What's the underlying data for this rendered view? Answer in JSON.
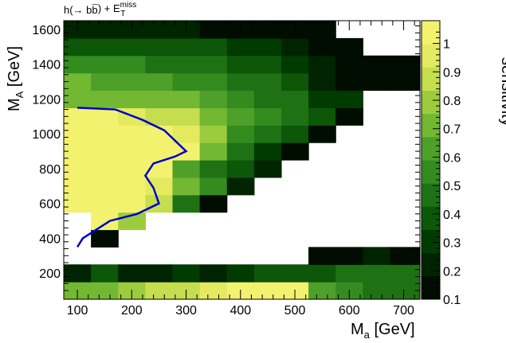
{
  "chart_data": {
    "type": "heatmap",
    "title_parts": {
      "main": "h(→ bb",
      "overline": "¯",
      "plus": ") + E",
      "sup": "miss",
      "sub": "T"
    },
    "xlabel": {
      "main": "M",
      "sub": "a",
      "rest": " [GeV]"
    },
    "ylabel": {
      "main": "M",
      "sub": "A",
      "rest": " [GeV]"
    },
    "zlabel": "sensitivity",
    "xlim": [
      75,
      730
    ],
    "ylim": [
      50,
      1650
    ],
    "zlim": [
      0.1,
      1.08
    ],
    "x_ticks": [
      100,
      200,
      300,
      400,
      500,
      600,
      700
    ],
    "y_ticks": [
      200,
      400,
      600,
      800,
      1000,
      1200,
      1400,
      1600
    ],
    "z_ticks": [
      0.1,
      0.2,
      0.3,
      0.4,
      0.5,
      0.6,
      0.7,
      0.8,
      0.9,
      1
    ],
    "x_edges": [
      75,
      125,
      175,
      225,
      275,
      325,
      375,
      425,
      475,
      525,
      575,
      625,
      675,
      730
    ],
    "y_edges": [
      50,
      150,
      250,
      350,
      450,
      550,
      650,
      750,
      850,
      950,
      1050,
      1150,
      1250,
      1350,
      1450,
      1550,
      1650
    ],
    "cells": [
      [
        0.7,
        0.75,
        0.8,
        0.85,
        0.9,
        0.95,
        1.0,
        1.0,
        1.05,
        0.6,
        0.55,
        0.5,
        0.45
      ],
      [
        0.25,
        0.35,
        0.2,
        0.25,
        0.3,
        0.25,
        0.3,
        0.35,
        0.35,
        0.4,
        0.45,
        0.45,
        0.45
      ],
      [
        null,
        null,
        null,
        null,
        null,
        null,
        null,
        null,
        null,
        0.1,
        0.1,
        0.2,
        0.15
      ],
      [
        null,
        0.15,
        null,
        null,
        null,
        null,
        null,
        null,
        null,
        null,
        null,
        null,
        null
      ],
      [
        null,
        1.0,
        0.8,
        null,
        null,
        null,
        null,
        null,
        null,
        null,
        null,
        null,
        null
      ],
      [
        1.0,
        1.0,
        1.0,
        0.9,
        0.5,
        0.1,
        null,
        null,
        null,
        null,
        null,
        null,
        null
      ],
      [
        1.0,
        1.0,
        1.0,
        0.95,
        0.7,
        0.55,
        0.25,
        null,
        null,
        null,
        null,
        null,
        null
      ],
      [
        1.0,
        1.0,
        1.0,
        1.0,
        0.6,
        0.5,
        0.4,
        0.2,
        null,
        null,
        null,
        null,
        null
      ],
      [
        1.0,
        1.0,
        1.0,
        1.0,
        1.0,
        0.7,
        0.45,
        0.3,
        0.1,
        null,
        null,
        null,
        null
      ],
      [
        1.0,
        1.0,
        1.0,
        1.0,
        0.95,
        0.8,
        0.55,
        0.45,
        0.4,
        0.1,
        null,
        null,
        null
      ],
      [
        1.0,
        1.0,
        0.95,
        0.9,
        0.85,
        0.7,
        0.6,
        0.55,
        0.45,
        0.35,
        0.1,
        null,
        null
      ],
      [
        0.75,
        0.75,
        0.75,
        0.7,
        0.7,
        0.6,
        0.55,
        0.5,
        0.45,
        0.3,
        0.3,
        null,
        null
      ],
      [
        0.7,
        0.65,
        0.6,
        0.6,
        0.55,
        0.55,
        0.45,
        0.45,
        0.35,
        0.2,
        0.15,
        0.1,
        0.05
      ],
      [
        0.55,
        0.55,
        0.55,
        0.5,
        0.5,
        0.45,
        0.4,
        0.35,
        0.3,
        0.25,
        0.1,
        0.05,
        0.05
      ],
      [
        0.35,
        0.4,
        0.35,
        0.35,
        0.35,
        0.35,
        0.3,
        0.3,
        0.25,
        0.15,
        0.05,
        null,
        null
      ],
      [
        0.2,
        0.25,
        0.2,
        0.25,
        0.2,
        0.1,
        0.05,
        0.05,
        0.05,
        0.05,
        null,
        null,
        null
      ]
    ],
    "contour": [
      [
        100,
        1150
      ],
      [
        170,
        1140
      ],
      [
        220,
        1080
      ],
      [
        260,
        1020
      ],
      [
        300,
        900
      ],
      [
        280,
        870
      ],
      [
        240,
        830
      ],
      [
        225,
        760
      ],
      [
        240,
        690
      ],
      [
        250,
        600
      ],
      [
        210,
        540
      ],
      [
        160,
        500
      ],
      [
        110,
        400
      ],
      [
        100,
        350
      ]
    ],
    "colors": {
      "contour": "#0000cc",
      "empty": "#ffffff"
    },
    "colormap": [
      "#000d00",
      "#002400",
      "#003b00",
      "#0c5708",
      "#1f7214",
      "#348c1f",
      "#4ea02a",
      "#73b832",
      "#9ccc3d",
      "#c5dd4e",
      "#e3ea60",
      "#f3f26f"
    ]
  }
}
